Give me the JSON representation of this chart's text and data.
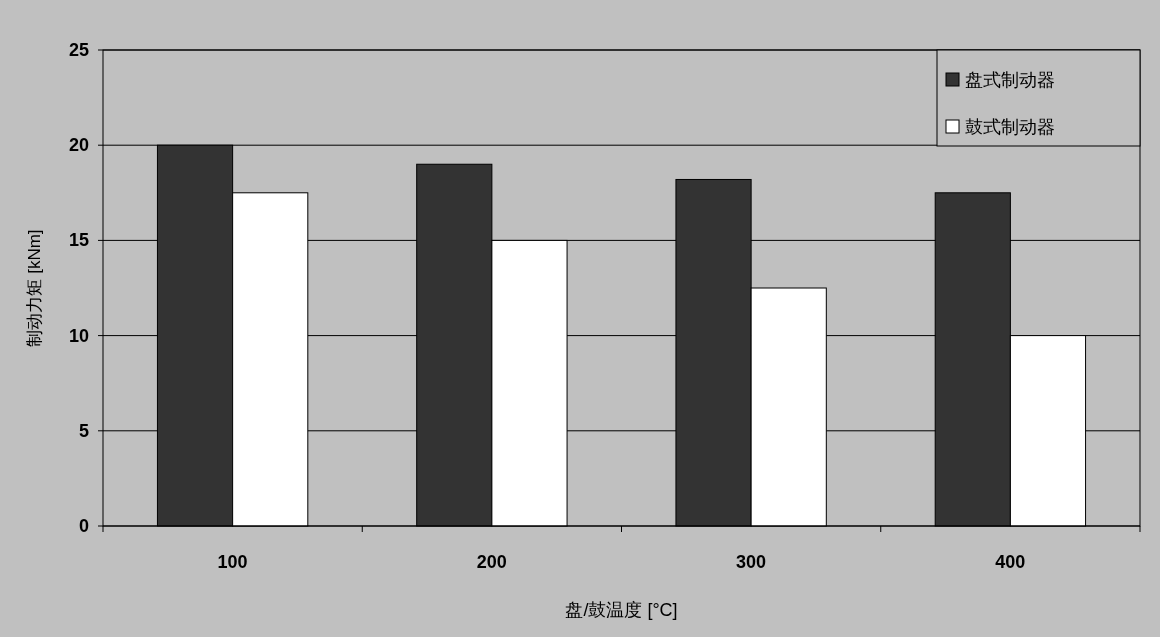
{
  "chart_data": {
    "type": "bar",
    "xlabel": "盘/鼓温度 [°C]",
    "ylabel": "制动力矩 [kNm]",
    "categories": [
      "100",
      "200",
      "300",
      "400"
    ],
    "series": [
      {
        "name": "盘式制动器",
        "color": "#333333",
        "values": [
          20,
          19,
          18.2,
          17.5
        ]
      },
      {
        "name": "鼓式制动器",
        "color": "#ffffff",
        "values": [
          17.5,
          15,
          12.5,
          10
        ]
      }
    ],
    "ylim": [
      0,
      25
    ],
    "yticks": [
      0,
      5,
      10,
      15,
      20,
      25
    ],
    "grid": "y",
    "legend": "top right"
  }
}
